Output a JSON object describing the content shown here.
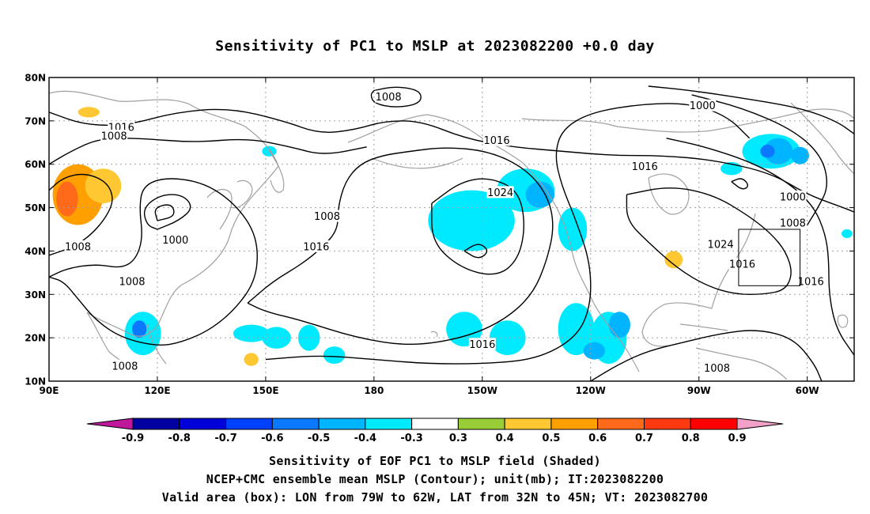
{
  "title": "Sensitivity of PC1 to MSLP at 2023082200 +0.0 day",
  "captions": [
    "Sensitivity of EOF PC1 to MSLP field (Shaded)",
    "NCEP+CMC ensemble mean MSLP (Contour); unit(mb); IT:2023082200",
    "Valid area (box): LON from 79W to 62W, LAT from 32N to 45N; VT: 2023082700"
  ],
  "map": {
    "lon_range": [
      90,
      313
    ],
    "lat_range": [
      10,
      80
    ],
    "lon_ticks": [
      {
        "lon": 90,
        "label": "90E"
      },
      {
        "lon": 120,
        "label": "120E"
      },
      {
        "lon": 150,
        "label": "150E"
      },
      {
        "lon": 180,
        "label": "180"
      },
      {
        "lon": 210,
        "label": "150W"
      },
      {
        "lon": 240,
        "label": "120W"
      },
      {
        "lon": 270,
        "label": "90W"
      },
      {
        "lon": 300,
        "label": "60W"
      }
    ],
    "lat_ticks": [
      {
        "lat": 10,
        "label": "10N"
      },
      {
        "lat": 20,
        "label": "20N"
      },
      {
        "lat": 30,
        "label": "30N"
      },
      {
        "lat": 40,
        "label": "40N"
      },
      {
        "lat": 50,
        "label": "50N"
      },
      {
        "lat": 60,
        "label": "60N"
      },
      {
        "lat": 70,
        "label": "70N"
      },
      {
        "lat": 80,
        "label": "80N"
      }
    ],
    "valid_box": {
      "lon": [
        281,
        298
      ],
      "lat": [
        32,
        45
      ]
    },
    "contour_labels": [
      {
        "lon": 184,
        "lat": 75.5,
        "text": "1008"
      },
      {
        "lon": 271,
        "lat": 73.5,
        "text": "1000"
      },
      {
        "lon": 110,
        "lat": 68.5,
        "text": "1016"
      },
      {
        "lon": 108,
        "lat": 66.5,
        "text": "1008"
      },
      {
        "lon": 214,
        "lat": 65.5,
        "text": "1016"
      },
      {
        "lon": 255,
        "lat": 59.5,
        "text": "1016"
      },
      {
        "lon": 215,
        "lat": 53.5,
        "text": "1024"
      },
      {
        "lon": 296,
        "lat": 52.5,
        "text": "1000"
      },
      {
        "lon": 296,
        "lat": 46.5,
        "text": "1008"
      },
      {
        "lon": 167,
        "lat": 48,
        "text": "1008"
      },
      {
        "lon": 125,
        "lat": 42.5,
        "text": "1000"
      },
      {
        "lon": 98,
        "lat": 41,
        "text": "1008"
      },
      {
        "lon": 164,
        "lat": 41,
        "text": "1016"
      },
      {
        "lon": 276,
        "lat": 41.5,
        "text": "1024"
      },
      {
        "lon": 282,
        "lat": 37,
        "text": "1016"
      },
      {
        "lon": 301,
        "lat": 33,
        "text": "1016"
      },
      {
        "lon": 113,
        "lat": 33,
        "text": "1008"
      },
      {
        "lon": 210,
        "lat": 18.5,
        "text": "1016"
      },
      {
        "lon": 111,
        "lat": 13.5,
        "text": "1008"
      },
      {
        "lon": 275,
        "lat": 13,
        "text": "1008"
      }
    ],
    "isobars": [
      [
        [
          90,
          72
        ],
        [
          100,
          69
        ],
        [
          112,
          69
        ],
        [
          125,
          72
        ],
        [
          140,
          73
        ],
        [
          155,
          70
        ],
        [
          165,
          67
        ],
        [
          175,
          68
        ],
        [
          183,
          70
        ],
        [
          193,
          70
        ],
        [
          205,
          66
        ],
        [
          218,
          64
        ],
        [
          232,
          63
        ],
        [
          246,
          62
        ],
        [
          260,
          62
        ],
        [
          274,
          61
        ],
        [
          290,
          58
        ],
        [
          300,
          53
        ],
        [
          310,
          50
        ],
        [
          313,
          49
        ]
      ],
      [
        [
          90,
          60
        ],
        [
          96,
          63
        ],
        [
          104,
          66
        ],
        [
          115,
          66
        ],
        [
          130,
          65
        ],
        [
          145,
          66
        ],
        [
          157,
          64
        ],
        [
          166,
          62
        ],
        [
          178,
          64
        ]
      ],
      [
        [
          180,
          77
        ],
        [
          186,
          78
        ],
        [
          193,
          77
        ],
        [
          193,
          74
        ],
        [
          186,
          73
        ],
        [
          180,
          74
        ],
        [
          179,
          76
        ],
        [
          180,
          77
        ]
      ],
      [
        [
          120,
          45
        ],
        [
          126,
          47
        ],
        [
          130,
          50
        ],
        [
          127,
          53
        ],
        [
          121,
          53
        ],
        [
          116,
          50
        ],
        [
          117,
          46
        ],
        [
          120,
          45
        ]
      ],
      [
        [
          120,
          47
        ],
        [
          125,
          48
        ],
        [
          124,
          51
        ],
        [
          119,
          50
        ],
        [
          120,
          47
        ]
      ],
      [
        [
          90,
          39
        ],
        [
          97,
          41
        ],
        [
          102,
          44
        ],
        [
          106,
          48
        ],
        [
          108,
          52
        ],
        [
          106,
          56
        ],
        [
          100,
          58
        ],
        [
          94,
          57
        ],
        [
          90,
          54
        ]
      ],
      [
        [
          90,
          34
        ],
        [
          95,
          36
        ],
        [
          103,
          37
        ],
        [
          110,
          36
        ],
        [
          114,
          38
        ],
        [
          116,
          43
        ],
        [
          115,
          50
        ],
        [
          116,
          55
        ],
        [
          122,
          57
        ],
        [
          132,
          56
        ],
        [
          140,
          52
        ],
        [
          146,
          46
        ],
        [
          148,
          40
        ],
        [
          147,
          33
        ],
        [
          142,
          27
        ],
        [
          135,
          22
        ],
        [
          127,
          19
        ],
        [
          120,
          18
        ],
        [
          110,
          20
        ],
        [
          103,
          24
        ],
        [
          98,
          29
        ],
        [
          94,
          33
        ],
        [
          90,
          34
        ]
      ],
      [
        [
          145,
          28
        ],
        [
          152,
          33
        ],
        [
          160,
          37
        ],
        [
          166,
          41
        ],
        [
          170,
          45
        ],
        [
          170,
          50
        ],
        [
          172,
          56
        ],
        [
          176,
          60
        ],
        [
          182,
          62
        ],
        [
          190,
          63
        ],
        [
          200,
          64
        ],
        [
          212,
          63
        ],
        [
          222,
          59
        ],
        [
          228,
          53
        ],
        [
          230,
          46
        ],
        [
          228,
          38
        ],
        [
          224,
          30
        ],
        [
          216,
          24
        ],
        [
          205,
          20
        ],
        [
          190,
          18
        ],
        [
          175,
          20
        ],
        [
          160,
          24
        ],
        [
          150,
          26
        ],
        [
          145,
          28
        ]
      ],
      [
        [
          196,
          51
        ],
        [
          204,
          56
        ],
        [
          212,
          57
        ],
        [
          220,
          54
        ],
        [
          222,
          46
        ],
        [
          220,
          38
        ],
        [
          214,
          34
        ],
        [
          204,
          36
        ],
        [
          196,
          42
        ],
        [
          196,
          51
        ]
      ],
      [
        [
          205,
          40
        ],
        [
          209,
          42
        ],
        [
          212,
          40
        ],
        [
          209,
          38
        ],
        [
          205,
          40
        ]
      ],
      [
        [
          150,
          15
        ],
        [
          165,
          16
        ],
        [
          180,
          15
        ],
        [
          195,
          14
        ],
        [
          210,
          14
        ],
        [
          225,
          15
        ],
        [
          236,
          20
        ],
        [
          240,
          27
        ],
        [
          240,
          37
        ],
        [
          236,
          47
        ],
        [
          232,
          55
        ],
        [
          230,
          62
        ],
        [
          232,
          68
        ],
        [
          240,
          72
        ],
        [
          255,
          74
        ],
        [
          268,
          74
        ],
        [
          278,
          71
        ],
        [
          284,
          66
        ]
      ],
      [
        [
          256,
          78
        ],
        [
          268,
          77
        ],
        [
          284,
          75
        ],
        [
          298,
          73
        ],
        [
          308,
          70
        ],
        [
          313,
          67
        ]
      ],
      [
        [
          268,
          76
        ],
        [
          282,
          73
        ],
        [
          296,
          68
        ],
        [
          304,
          62
        ],
        [
          306,
          55
        ],
        [
          303,
          50
        ],
        [
          300,
          46
        ]
      ],
      [
        [
          279,
          56
        ],
        [
          282,
          57
        ],
        [
          284,
          55
        ],
        [
          282,
          54
        ],
        [
          279,
          56
        ]
      ],
      [
        [
          261,
          66
        ],
        [
          272,
          64
        ],
        [
          286,
          60
        ],
        [
          296,
          55
        ],
        [
          302,
          50
        ],
        [
          305,
          44
        ],
        [
          306,
          38
        ],
        [
          306,
          30
        ],
        [
          308,
          22
        ],
        [
          313,
          16
        ]
      ],
      [
        [
          250,
          53
        ],
        [
          262,
          55
        ],
        [
          274,
          53
        ],
        [
          284,
          48
        ],
        [
          290,
          44
        ],
        [
          294,
          40
        ],
        [
          296,
          35
        ],
        [
          294,
          31
        ],
        [
          288,
          30
        ],
        [
          280,
          30
        ],
        [
          272,
          32
        ],
        [
          264,
          36
        ],
        [
          256,
          42
        ],
        [
          250,
          47
        ],
        [
          250,
          53
        ]
      ],
      [
        [
          240,
          10
        ],
        [
          248,
          14
        ],
        [
          256,
          17
        ],
        [
          266,
          19
        ],
        [
          276,
          21
        ],
        [
          286,
          22
        ],
        [
          296,
          20
        ],
        [
          302,
          14
        ],
        [
          304,
          10
        ]
      ]
    ],
    "shading": [
      {
        "lon": 98,
        "lat": 53,
        "rx": 7,
        "ry": 7,
        "value": 0.5
      },
      {
        "lon": 95,
        "lat": 52,
        "rx": 3,
        "ry": 4,
        "value": 0.6
      },
      {
        "lon": 105,
        "lat": 55,
        "rx": 5,
        "ry": 4,
        "value": 0.4
      },
      {
        "lon": 101,
        "lat": 72,
        "rx": 3,
        "ry": 1.2,
        "value": 0.4
      },
      {
        "lon": 116,
        "lat": 21,
        "rx": 5,
        "ry": 5,
        "value": -0.4
      },
      {
        "lon": 115,
        "lat": 22,
        "rx": 2,
        "ry": 2,
        "value": -0.6
      },
      {
        "lon": 146,
        "lat": 21,
        "rx": 5,
        "ry": 2,
        "value": -0.4
      },
      {
        "lon": 153,
        "lat": 20,
        "rx": 4,
        "ry": 2.5,
        "value": -0.4
      },
      {
        "lon": 162,
        "lat": 20,
        "rx": 3,
        "ry": 3,
        "value": -0.4
      },
      {
        "lon": 169,
        "lat": 16,
        "rx": 3,
        "ry": 2,
        "value": -0.4
      },
      {
        "lon": 151,
        "lat": 63,
        "rx": 2,
        "ry": 1.2,
        "value": -0.4
      },
      {
        "lon": 146,
        "lat": 15,
        "rx": 2,
        "ry": 1.5,
        "value": 0.4
      },
      {
        "lon": 207,
        "lat": 47,
        "rx": 12,
        "ry": 7,
        "value": -0.4
      },
      {
        "lon": 222,
        "lat": 54,
        "rx": 8,
        "ry": 5,
        "value": -0.4
      },
      {
        "lon": 226,
        "lat": 53,
        "rx": 4,
        "ry": 3,
        "value": -0.5
      },
      {
        "lon": 235,
        "lat": 45,
        "rx": 4,
        "ry": 5,
        "value": -0.4
      },
      {
        "lon": 205,
        "lat": 22,
        "rx": 5,
        "ry": 4,
        "value": -0.4
      },
      {
        "lon": 217,
        "lat": 20,
        "rx": 5,
        "ry": 4,
        "value": -0.4
      },
      {
        "lon": 236,
        "lat": 22,
        "rx": 5,
        "ry": 6,
        "value": -0.4
      },
      {
        "lon": 245,
        "lat": 20,
        "rx": 5,
        "ry": 6,
        "value": -0.4
      },
      {
        "lon": 248,
        "lat": 23,
        "rx": 3,
        "ry": 3,
        "value": -0.5
      },
      {
        "lon": 241,
        "lat": 17,
        "rx": 3,
        "ry": 2,
        "value": -0.5
      },
      {
        "lon": 263,
        "lat": 38,
        "rx": 2.5,
        "ry": 2,
        "value": 0.4
      },
      {
        "lon": 290,
        "lat": 63,
        "rx": 8,
        "ry": 4,
        "value": -0.4
      },
      {
        "lon": 292,
        "lat": 63,
        "rx": 4,
        "ry": 3,
        "value": -0.5
      },
      {
        "lon": 289,
        "lat": 63,
        "rx": 2,
        "ry": 1.5,
        "value": -0.6
      },
      {
        "lon": 298,
        "lat": 62,
        "rx": 2.5,
        "ry": 2,
        "value": -0.5
      },
      {
        "lon": 279,
        "lat": 59,
        "rx": 3,
        "ry": 1.5,
        "value": -0.4
      },
      {
        "lon": 311,
        "lat": 44,
        "rx": 1.5,
        "ry": 1,
        "value": -0.4
      }
    ]
  },
  "colorbar": {
    "labels": [
      "-0.9",
      "-0.8",
      "-0.7",
      "-0.6",
      "-0.5",
      "-0.4",
      "-0.3",
      "0.3",
      "0.4",
      "0.5",
      "0.6",
      "0.7",
      "0.8",
      "0.9"
    ],
    "left_tip_color": "#c0189c",
    "right_tip_color": "#f2a0c8",
    "colors": [
      "#0000a0",
      "#0000d8",
      "#0040ff",
      "#0a78ff",
      "#00b4ff",
      "#00eaff",
      "#ffffff",
      "#98cd38",
      "#ffc832",
      "#ff9f00",
      "#ff6a1a",
      "#ff3a10",
      "#ff0000"
    ]
  },
  "colors": {
    "contour": "#000000",
    "coast": "#a0a0a0",
    "grid": "#a0a0a0"
  }
}
